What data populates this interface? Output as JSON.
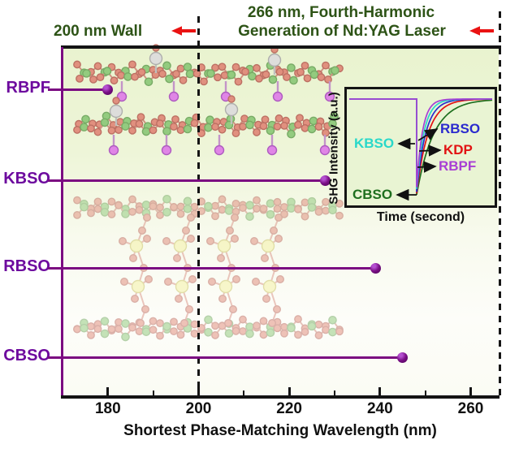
{
  "header": {
    "wall_label": "200 nm Wall",
    "harmonic_line1": "266 nm, Fourth-Harmonic",
    "harmonic_line2": "Generation of Nd:YAG Laser"
  },
  "chart_data": [
    {
      "type": "bar",
      "style": "lollipop",
      "orientation": "horizontal",
      "title": "",
      "categories": [
        "RBPF",
        "KBSO",
        "RBSO",
        "CBSO"
      ],
      "values": [
        180,
        228,
        239,
        245
      ],
      "unit": "nm",
      "xlabel": "Shortest Phase-Matching Wavelength (nm)",
      "ylabel": "",
      "xlim": [
        170,
        266
      ],
      "xticks": [
        180,
        200,
        220,
        240,
        260
      ],
      "minor_xticks": [
        190,
        210,
        230,
        250
      ],
      "grid": false,
      "reference_lines": [
        {
          "x": 200,
          "style": "dashed",
          "label": "200 nm Wall"
        },
        {
          "x": 266,
          "style": "dashed",
          "label": "266 nm, Fourth-Harmonic Generation of Nd:YAG Laser"
        }
      ]
    },
    {
      "type": "line",
      "role": "inset",
      "title": "",
      "xlabel": "Time (second)",
      "ylabel": "SHG Intensity (a.u.)",
      "axis_ticks": "none (qualitative)",
      "baseline_intensity_norm": 1.0,
      "drop_time_frac": 0.46,
      "series": [
        {
          "name": "KBSO",
          "color": "#29d8c9",
          "drop_depth_norm": 0.94,
          "recovery_tau_frac": 0.05
        },
        {
          "name": "RBSO",
          "color": "#2a2ace",
          "drop_depth_norm": 0.97,
          "recovery_tau_frac": 0.062
        },
        {
          "name": "KDP",
          "color": "#e21212",
          "drop_depth_norm": 0.985,
          "recovery_tau_frac": 0.078
        },
        {
          "name": "RBPF",
          "color": "#a83fd4",
          "drop_depth_norm": 0.92,
          "recovery_tau_frac": 0.04
        },
        {
          "name": "CBSO",
          "color": "#1e6f1e",
          "drop_depth_norm": 1.0,
          "recovery_tau_frac": 0.115
        }
      ],
      "legend_position": "labels with arrows inside plot"
    }
  ],
  "colors": {
    "line_purple": "#7b0b81",
    "category_label_purple": "#6d0a9e",
    "title_green": "#2d5316",
    "arrow_red": "#ea1212",
    "frame_black": "#141414",
    "plot_bg_top": "#e9f3cf",
    "plot_bg_bottom": "#fcfdf8",
    "inset_bg": "#e9f4d3",
    "molecule_salmon": "#e08878",
    "molecule_green": "#8cc878",
    "molecule_violet": "#df7ce8",
    "molecule_gray": "#dcdcdc",
    "molecule_yellow": "#f5f2a0"
  }
}
